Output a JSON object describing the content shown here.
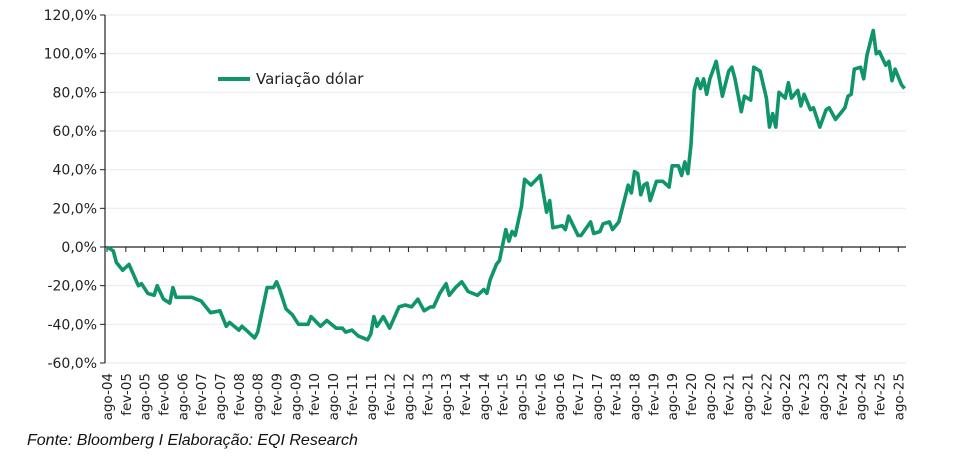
{
  "chart_data": {
    "type": "line",
    "title": "",
    "xlabel": "",
    "ylabel": "",
    "ylim": [
      -60,
      120
    ],
    "grid": true,
    "legend_position": "top-left",
    "color": "#10946a",
    "y_ticks": [
      "120,0%",
      "100,0%",
      "80,0%",
      "60,0%",
      "40,0%",
      "20,0%",
      "0,0%",
      "-20,0%",
      "-40,0%",
      "-60,0%"
    ],
    "x_ticks": [
      "ago-04",
      "fev-05",
      "ago-05",
      "fev-06",
      "ago-06",
      "fev-07",
      "ago-07",
      "fev-08",
      "ago-08",
      "fev-09",
      "ago-09",
      "fev-10",
      "ago-10",
      "fev-11",
      "ago-11",
      "fev-12",
      "ago-12",
      "fev-13",
      "ago-13",
      "fev-14",
      "ago-14",
      "fev-15",
      "ago-15",
      "fev-16",
      "ago-16",
      "fev-17",
      "ago-17",
      "fev-18",
      "ago-18",
      "fev-19",
      "ago-19",
      "fev-20",
      "ago-20",
      "fev-21",
      "ago-21",
      "fev-22",
      "ago-22",
      "fev-23",
      "ago-23",
      "fev-24",
      "ago-24",
      "fev-25",
      "ago-25"
    ],
    "series": [
      {
        "name": "Variação dólar",
        "points": [
          [
            "2004-08",
            0
          ],
          [
            "2004-10",
            -2
          ],
          [
            "2004-11",
            -8
          ],
          [
            "2005-01",
            -12
          ],
          [
            "2005-03",
            -9
          ],
          [
            "2005-06",
            -20
          ],
          [
            "2005-07",
            -19
          ],
          [
            "2005-09",
            -24
          ],
          [
            "2005-11",
            -25
          ],
          [
            "2005-12",
            -20
          ],
          [
            "2006-02",
            -27
          ],
          [
            "2006-04",
            -29
          ],
          [
            "2006-05",
            -21
          ],
          [
            "2006-06",
            -26
          ],
          [
            "2006-11",
            -26
          ],
          [
            "2007-02",
            -28
          ],
          [
            "2007-05",
            -34
          ],
          [
            "2007-08",
            -33
          ],
          [
            "2007-10",
            -41
          ],
          [
            "2007-11",
            -39
          ],
          [
            "2008-02",
            -43
          ],
          [
            "2008-03",
            -41
          ],
          [
            "2008-05",
            -44
          ],
          [
            "2008-07",
            -47
          ],
          [
            "2008-08",
            -44
          ],
          [
            "2008-11",
            -21
          ],
          [
            "2009-01",
            -21
          ],
          [
            "2009-02",
            -18
          ],
          [
            "2009-03",
            -22
          ],
          [
            "2009-05",
            -32
          ],
          [
            "2009-07",
            -35
          ],
          [
            "2009-09",
            -40
          ],
          [
            "2009-12",
            -40
          ],
          [
            "2010-01",
            -36
          ],
          [
            "2010-04",
            -41
          ],
          [
            "2010-06",
            -38
          ],
          [
            "2010-09",
            -42
          ],
          [
            "2010-11",
            -42
          ],
          [
            "2010-12",
            -44
          ],
          [
            "2011-02",
            -43
          ],
          [
            "2011-04",
            -46
          ],
          [
            "2011-07",
            -48
          ],
          [
            "2011-08",
            -45
          ],
          [
            "2011-09",
            -36
          ],
          [
            "2011-10",
            -41
          ],
          [
            "2011-12",
            -36
          ],
          [
            "2012-02",
            -42
          ],
          [
            "2012-05",
            -31
          ],
          [
            "2012-07",
            -30
          ],
          [
            "2012-09",
            -31
          ],
          [
            "2012-11",
            -27
          ],
          [
            "2013-01",
            -33
          ],
          [
            "2013-03",
            -31
          ],
          [
            "2013-04",
            -31
          ],
          [
            "2013-06",
            -24
          ],
          [
            "2013-08",
            -19
          ],
          [
            "2013-09",
            -25
          ],
          [
            "2013-11",
            -21
          ],
          [
            "2014-01",
            -18
          ],
          [
            "2014-03",
            -23
          ],
          [
            "2014-06",
            -25
          ],
          [
            "2014-08",
            -22
          ],
          [
            "2014-09",
            -24
          ],
          [
            "2014-10",
            -17
          ],
          [
            "2014-12",
            -9
          ],
          [
            "2015-01",
            -7
          ],
          [
            "2015-02",
            1
          ],
          [
            "2015-03",
            9
          ],
          [
            "2015-04",
            3
          ],
          [
            "2015-05",
            8
          ],
          [
            "2015-06",
            6
          ],
          [
            "2015-08",
            21
          ],
          [
            "2015-09",
            35
          ],
          [
            "2015-11",
            32
          ],
          [
            "2016-02",
            37
          ],
          [
            "2016-04",
            18
          ],
          [
            "2016-05",
            24
          ],
          [
            "2016-06",
            10
          ],
          [
            "2016-09",
            11
          ],
          [
            "2016-10",
            9
          ],
          [
            "2016-11",
            16
          ],
          [
            "2017-02",
            6
          ],
          [
            "2017-03",
            6
          ],
          [
            "2017-06",
            13
          ],
          [
            "2017-07",
            7
          ],
          [
            "2017-09",
            8
          ],
          [
            "2017-10",
            12
          ],
          [
            "2017-12",
            13
          ],
          [
            "2018-01",
            9
          ],
          [
            "2018-03",
            13
          ],
          [
            "2018-06",
            32
          ],
          [
            "2018-07",
            28
          ],
          [
            "2018-08",
            39
          ],
          [
            "2018-09",
            38
          ],
          [
            "2018-10",
            27
          ],
          [
            "2018-11",
            32
          ],
          [
            "2018-12",
            33
          ],
          [
            "2019-01",
            24
          ],
          [
            "2019-03",
            34
          ],
          [
            "2019-05",
            34
          ],
          [
            "2019-07",
            31
          ],
          [
            "2019-08",
            42
          ],
          [
            "2019-10",
            42
          ],
          [
            "2019-11",
            37
          ],
          [
            "2019-12",
            44
          ],
          [
            "2020-01",
            38
          ],
          [
            "2020-02",
            53
          ],
          [
            "2020-03",
            81
          ],
          [
            "2020-04",
            87
          ],
          [
            "2020-05",
            82
          ],
          [
            "2020-06",
            87
          ],
          [
            "2020-07",
            79
          ],
          [
            "2020-08",
            87
          ],
          [
            "2020-10",
            96
          ],
          [
            "2020-12",
            78
          ],
          [
            "2021-02",
            91
          ],
          [
            "2021-03",
            93
          ],
          [
            "2021-04",
            87
          ],
          [
            "2021-06",
            70
          ],
          [
            "2021-07",
            78
          ],
          [
            "2021-09",
            76
          ],
          [
            "2021-10",
            93
          ],
          [
            "2021-12",
            91
          ],
          [
            "2022-02",
            77
          ],
          [
            "2022-03",
            62
          ],
          [
            "2022-04",
            69
          ],
          [
            "2022-05",
            62
          ],
          [
            "2022-06",
            80
          ],
          [
            "2022-08",
            77
          ],
          [
            "2022-09",
            85
          ],
          [
            "2022-10",
            77
          ],
          [
            "2022-12",
            81
          ],
          [
            "2023-01",
            73
          ],
          [
            "2023-02",
            79
          ],
          [
            "2023-04",
            71
          ],
          [
            "2023-05",
            72
          ],
          [
            "2023-07",
            62
          ],
          [
            "2023-09",
            71
          ],
          [
            "2023-10",
            72
          ],
          [
            "2023-12",
            66
          ],
          [
            "2024-02",
            70
          ],
          [
            "2024-03",
            72
          ],
          [
            "2024-04",
            78
          ],
          [
            "2024-05",
            79
          ],
          [
            "2024-06",
            92
          ],
          [
            "2024-08",
            93
          ],
          [
            "2024-09",
            87
          ],
          [
            "2024-10",
            99
          ],
          [
            "2024-12",
            112
          ],
          [
            "2025-01",
            100
          ],
          [
            "2025-02",
            101
          ],
          [
            "2025-04",
            94
          ],
          [
            "2025-05",
            96
          ],
          [
            "2025-06",
            86
          ],
          [
            "2025-07",
            92
          ],
          [
            "2025-09",
            84
          ],
          [
            "2025-10",
            82
          ]
        ]
      }
    ]
  },
  "source": "Fonte: Bloomberg I Elaboração: EQI Research"
}
